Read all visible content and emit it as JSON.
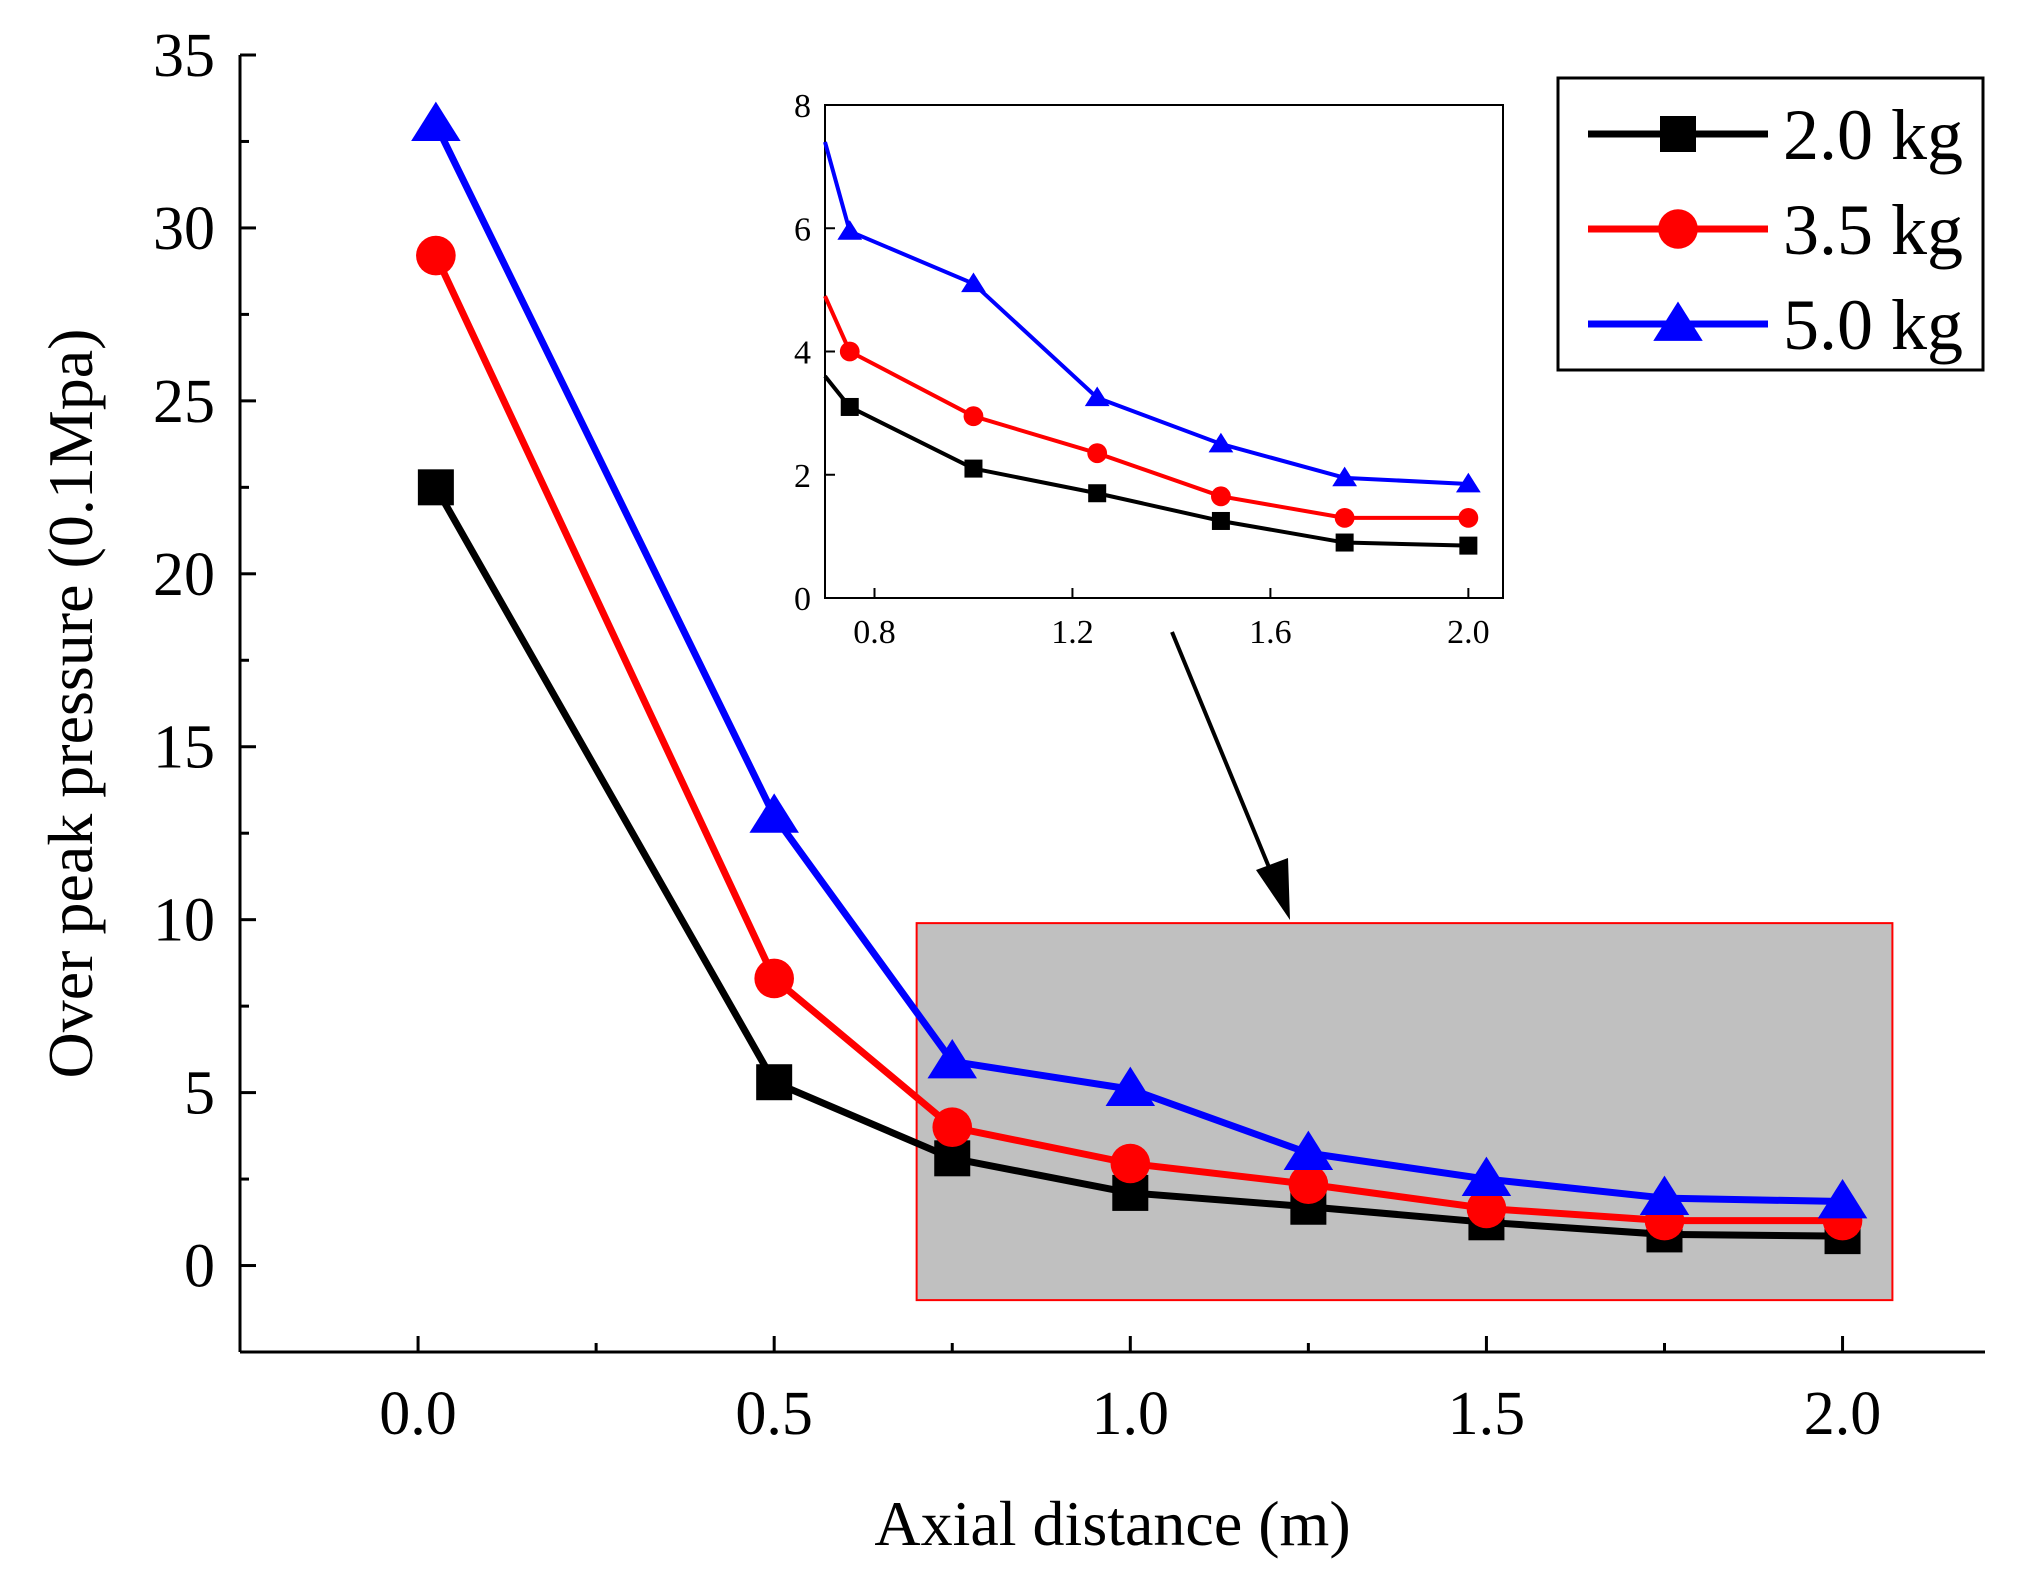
{
  "chart_data": {
    "type": "line",
    "title": "",
    "xlabel": "Axial distance (m)",
    "ylabel": "Over peak pressure (0.1Mpa)",
    "xlim": [
      -0.25,
      2.2
    ],
    "ylim": [
      -2.5,
      35
    ],
    "x_ticks": [
      0.0,
      0.5,
      1.0,
      1.5,
      2.0
    ],
    "x_tick_labels": [
      "0.0",
      "0.5",
      "1.0",
      "1.5",
      "2.0"
    ],
    "y_ticks": [
      0,
      5,
      10,
      15,
      20,
      25,
      30,
      35
    ],
    "y_tick_labels": [
      "0",
      "5",
      "10",
      "15",
      "20",
      "25",
      "30",
      "35"
    ],
    "grid": false,
    "legend_position": "top-right",
    "series": [
      {
        "name": "2.0 kg",
        "color": "#000000",
        "marker": "square",
        "x": [
          0.025,
          0.5,
          0.75,
          1.0,
          1.25,
          1.5,
          1.75,
          2.0
        ],
        "values": [
          22.5,
          5.3,
          3.1,
          2.1,
          1.7,
          1.25,
          0.9,
          0.85
        ]
      },
      {
        "name": "3.5 kg",
        "color": "#ff0000",
        "marker": "circle",
        "x": [
          0.025,
          0.5,
          0.75,
          1.0,
          1.25,
          1.5,
          1.75,
          2.0
        ],
        "values": [
          29.2,
          8.3,
          4.0,
          2.95,
          2.35,
          1.65,
          1.3,
          1.3
        ]
      },
      {
        "name": "5.0 kg",
        "color": "#0000ff",
        "marker": "triangle",
        "x": [
          0.025,
          0.5,
          0.75,
          1.0,
          1.25,
          1.5,
          1.75,
          2.0
        ],
        "values": [
          33.0,
          13.0,
          5.9,
          5.1,
          3.25,
          2.5,
          1.95,
          1.85
        ]
      }
    ],
    "highlight_region": {
      "x_range": [
        0.7,
        2.07
      ],
      "y_range": [
        -1.0,
        9.9
      ],
      "fill": "#c0c0c0",
      "stroke": "#ff0000"
    },
    "inset": {
      "xlim": [
        0.7,
        2.07
      ],
      "ylim": [
        0,
        8
      ],
      "x_ticks": [
        0.8,
        1.2,
        1.6,
        2.0
      ],
      "x_tick_labels": [
        "0.8",
        "1.2",
        "1.6",
        "2.0"
      ],
      "y_ticks": [
        0,
        2,
        4,
        6,
        8
      ],
      "y_tick_labels": [
        "0",
        "2",
        "4",
        "6",
        "8"
      ],
      "series": [
        {
          "name": "2.0 kg",
          "color": "#000000",
          "marker": "square",
          "x": [
            0.7,
            0.75,
            1.0,
            1.25,
            1.5,
            1.75,
            2.0
          ],
          "values": [
            3.6,
            3.1,
            2.1,
            1.7,
            1.25,
            0.9,
            0.85
          ]
        },
        {
          "name": "3.5 kg",
          "color": "#ff0000",
          "marker": "circle",
          "x": [
            0.7,
            0.75,
            1.0,
            1.25,
            1.5,
            1.75,
            2.0
          ],
          "values": [
            4.9,
            4.0,
            2.95,
            2.35,
            1.65,
            1.3,
            1.3
          ]
        },
        {
          "name": "5.0 kg",
          "color": "#0000ff",
          "marker": "triangle",
          "x": [
            0.7,
            0.75,
            1.0,
            1.25,
            1.5,
            1.75,
            2.0
          ],
          "values": [
            7.4,
            5.95,
            5.1,
            3.25,
            2.5,
            1.95,
            1.85
          ]
        }
      ]
    }
  }
}
